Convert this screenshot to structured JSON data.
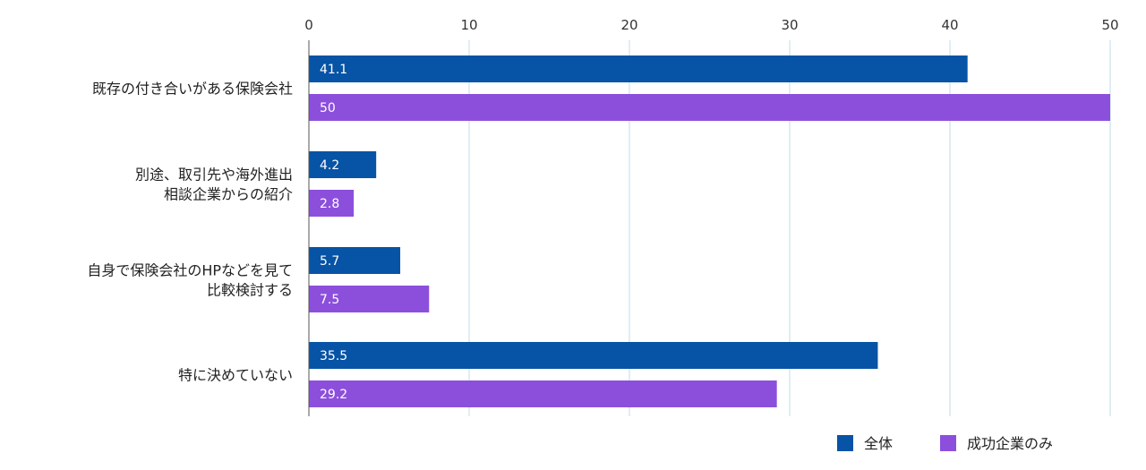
{
  "chart_data": {
    "type": "bar",
    "orientation": "horizontal",
    "title": "",
    "xlabel": "",
    "ylabel": "",
    "xlim": [
      0,
      50
    ],
    "ticks": [
      "0",
      "10",
      "20",
      "30",
      "40",
      "50"
    ],
    "grid": true,
    "legend_position": "bottom-right",
    "categories": [
      [
        "既存の付き合いがある保険会社"
      ],
      [
        "別途、取引先や海外進出",
        "相談企業からの紹介"
      ],
      [
        "自身で保険会社のHPなどを見て",
        "比較検討する"
      ],
      [
        "特に決めていない"
      ]
    ],
    "series": [
      {
        "name": "全体",
        "color": "#0753a5",
        "values": [
          41.1,
          4.2,
          5.7,
          35.5
        ],
        "labels": [
          "41.1",
          "4.2",
          "5.7",
          "35.5"
        ]
      },
      {
        "name": "成功企業のみ",
        "color": "#8c4fdc",
        "values": [
          50,
          2.8,
          7.5,
          29.2
        ],
        "labels": [
          "50",
          "2.8",
          "7.5",
          "29.2"
        ]
      }
    ]
  }
}
